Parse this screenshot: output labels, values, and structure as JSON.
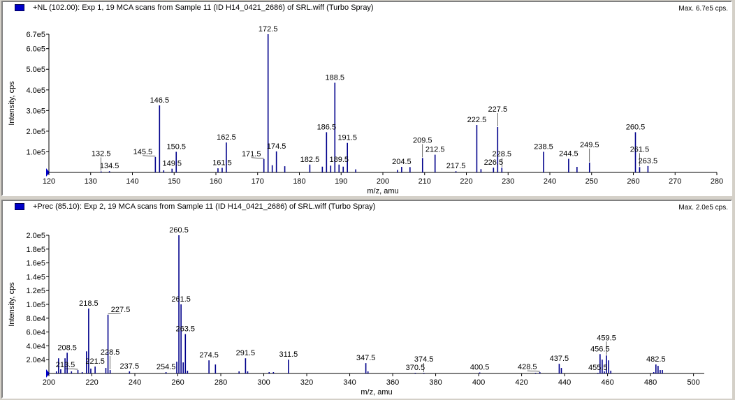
{
  "colors": {
    "peak": "#00008b",
    "background": "#d4d0c8",
    "axis": "#000000",
    "marker": "#0000c8"
  },
  "chart_data": [
    {
      "type": "bar",
      "title": "+NL (102.00): Exp 1, 19 MCA scans from Sample 11 (ID H14_0421_2686) of SRL.wiff (Turbo Spray)",
      "max_label": "Max. 6.7e5 cps.",
      "xlabel": "m/z, amu",
      "ylabel": "Intensity, cps",
      "xlim": [
        120,
        280
      ],
      "ylim": [
        0,
        670000
      ],
      "xticks": [
        "120",
        "130",
        "140",
        "150",
        "160",
        "170",
        "180",
        "190",
        "200",
        "210",
        "220",
        "230",
        "240",
        "250",
        "260",
        "270",
        "280"
      ],
      "yticks": [
        {
          "v": 100000,
          "t": "1.0e5"
        },
        {
          "v": 200000,
          "t": "2.0e5"
        },
        {
          "v": 300000,
          "t": "3.0e5"
        },
        {
          "v": 400000,
          "t": "4.0e5"
        },
        {
          "v": 500000,
          "t": "5.0e5"
        },
        {
          "v": 600000,
          "t": "6.0e5"
        },
        {
          "v": 670000,
          "t": "6.7e5"
        }
      ],
      "peaks": [
        {
          "mz": 132.5,
          "i": 5000,
          "label": "132.5"
        },
        {
          "mz": 134.5,
          "i": 6000,
          "label": "134.5"
        },
        {
          "mz": 145.5,
          "i": 75000,
          "label": "145.5"
        },
        {
          "mz": 146.5,
          "i": 325000,
          "label": "146.5"
        },
        {
          "mz": 147.5,
          "i": 10000
        },
        {
          "mz": 149.5,
          "i": 18000,
          "label": "149.5"
        },
        {
          "mz": 150.5,
          "i": 100000,
          "label": "150.5"
        },
        {
          "mz": 160.5,
          "i": 20000
        },
        {
          "mz": 161.5,
          "i": 22000,
          "label": "161.5"
        },
        {
          "mz": 162.5,
          "i": 145000,
          "label": "162.5"
        },
        {
          "mz": 171.5,
          "i": 65000,
          "label": "171.5"
        },
        {
          "mz": 172.5,
          "i": 670000,
          "label": "172.5"
        },
        {
          "mz": 173.5,
          "i": 35000
        },
        {
          "mz": 174.5,
          "i": 102000,
          "label": "174.5"
        },
        {
          "mz": 176.5,
          "i": 30000
        },
        {
          "mz": 182.5,
          "i": 38000,
          "label": "182.5"
        },
        {
          "mz": 185.5,
          "i": 28000
        },
        {
          "mz": 186.5,
          "i": 195000,
          "label": "186.5"
        },
        {
          "mz": 187.5,
          "i": 33000
        },
        {
          "mz": 188.5,
          "i": 435000,
          "label": "188.5"
        },
        {
          "mz": 189.5,
          "i": 38000,
          "label": "189.5"
        },
        {
          "mz": 190.5,
          "i": 28000
        },
        {
          "mz": 191.5,
          "i": 143000,
          "label": "191.5"
        },
        {
          "mz": 193.5,
          "i": 15000
        },
        {
          "mz": 203.5,
          "i": 12000
        },
        {
          "mz": 204.5,
          "i": 27000,
          "label": "204.5"
        },
        {
          "mz": 206.5,
          "i": 26000
        },
        {
          "mz": 209.5,
          "i": 70000,
          "label": "209.5"
        },
        {
          "mz": 212.5,
          "i": 86000,
          "label": "212.5"
        },
        {
          "mz": 217.5,
          "i": 6000,
          "label": "217.5"
        },
        {
          "mz": 222.5,
          "i": 230000,
          "label": "222.5"
        },
        {
          "mz": 223.5,
          "i": 16000
        },
        {
          "mz": 226.5,
          "i": 23000,
          "label": "226.5"
        },
        {
          "mz": 227.5,
          "i": 220000,
          "label": "227.5"
        },
        {
          "mz": 228.5,
          "i": 23000,
          "label": "228.5"
        },
        {
          "mz": 238.5,
          "i": 100000,
          "label": "238.5"
        },
        {
          "mz": 244.5,
          "i": 66000,
          "label": "244.5"
        },
        {
          "mz": 246.5,
          "i": 27000
        },
        {
          "mz": 249.5,
          "i": 48000,
          "label": "249.5"
        },
        {
          "mz": 260.5,
          "i": 195000,
          "label": "260.5"
        },
        {
          "mz": 261.5,
          "i": 26000,
          "label": "261.5"
        },
        {
          "mz": 263.5,
          "i": 31000,
          "label": "263.5"
        }
      ]
    },
    {
      "type": "bar",
      "title": "+Prec (85.10): Exp 2, 19 MCA scans from Sample 11 (ID H14_0421_2686) of SRL.wiff (Turbo Spray)",
      "max_label": "Max. 2.0e5 cps.",
      "xlabel": "m/z, amu",
      "ylabel": "Intensity, cps",
      "xlim": [
        200,
        505
      ],
      "ylim": [
        0,
        200000
      ],
      "xticks": [
        "200",
        "220",
        "240",
        "260",
        "280",
        "300",
        "320",
        "340",
        "360",
        "380",
        "400",
        "420",
        "440",
        "460",
        "480",
        "500"
      ],
      "yticks": [
        {
          "v": 20000,
          "t": "2.0e4"
        },
        {
          "v": 40000,
          "t": "4.0e4"
        },
        {
          "v": 60000,
          "t": "6.0e4"
        },
        {
          "v": 80000,
          "t": "8.0e4"
        },
        {
          "v": 100000,
          "t": "1.0e5"
        },
        {
          "v": 120000,
          "t": "1.2e5"
        },
        {
          "v": 140000,
          "t": "1.4e5"
        },
        {
          "v": 160000,
          "t": "1.6e5"
        },
        {
          "v": 180000,
          "t": "1.8e5"
        },
        {
          "v": 200000,
          "t": "2.0e5"
        }
      ],
      "peaks": [
        {
          "mz": 203.5,
          "i": 3000
        },
        {
          "mz": 204.5,
          "i": 22000
        },
        {
          "mz": 205.5,
          "i": 6000
        },
        {
          "mz": 207.5,
          "i": 22000
        },
        {
          "mz": 208.5,
          "i": 30000,
          "label": "208.5"
        },
        {
          "mz": 210.5,
          "i": 3000
        },
        {
          "mz": 213.5,
          "i": 5000,
          "label": "213.5"
        },
        {
          "mz": 215.5,
          "i": 2000
        },
        {
          "mz": 217.5,
          "i": 32000
        },
        {
          "mz": 218.5,
          "i": 94000,
          "label": "218.5"
        },
        {
          "mz": 219.5,
          "i": 7000
        },
        {
          "mz": 221.5,
          "i": 10000,
          "label": "221.5"
        },
        {
          "mz": 226.5,
          "i": 8000
        },
        {
          "mz": 227.5,
          "i": 85000,
          "label": "227.5"
        },
        {
          "mz": 228.5,
          "i": 5000,
          "label": "228.5"
        },
        {
          "mz": 237.5,
          "i": 3000,
          "label": "237.5"
        },
        {
          "mz": 254.5,
          "i": 2000,
          "label": "254.5"
        },
        {
          "mz": 259.5,
          "i": 17000
        },
        {
          "mz": 260.5,
          "i": 200000,
          "label": "260.5"
        },
        {
          "mz": 261.5,
          "i": 100000,
          "label": "261.5"
        },
        {
          "mz": 262.5,
          "i": 16000
        },
        {
          "mz": 263.5,
          "i": 57000,
          "label": "263.5"
        },
        {
          "mz": 264.5,
          "i": 4000
        },
        {
          "mz": 274.5,
          "i": 19000,
          "label": "274.5"
        },
        {
          "mz": 277.5,
          "i": 13000
        },
        {
          "mz": 288.5,
          "i": 3000
        },
        {
          "mz": 291.5,
          "i": 22000,
          "label": "291.5"
        },
        {
          "mz": 292.5,
          "i": 3000
        },
        {
          "mz": 302.5,
          "i": 2000
        },
        {
          "mz": 304.5,
          "i": 2000
        },
        {
          "mz": 311.5,
          "i": 20000,
          "label": "311.5"
        },
        {
          "mz": 347.5,
          "i": 15000,
          "label": "347.5"
        },
        {
          "mz": 348.5,
          "i": 3000
        },
        {
          "mz": 370.5,
          "i": 1000,
          "label": "370.5"
        },
        {
          "mz": 374.5,
          "i": 1000,
          "label": "374.5"
        },
        {
          "mz": 400.5,
          "i": 1500,
          "label": "400.5"
        },
        {
          "mz": 426.5,
          "i": 1000
        },
        {
          "mz": 428.5,
          "i": 2000,
          "label": "428.5"
        },
        {
          "mz": 437.5,
          "i": 14000,
          "label": "437.5"
        },
        {
          "mz": 438.5,
          "i": 8000
        },
        {
          "mz": 455.5,
          "i": 1000,
          "label": "455.5"
        },
        {
          "mz": 456.5,
          "i": 28000,
          "label": "456.5"
        },
        {
          "mz": 457.5,
          "i": 20000
        },
        {
          "mz": 458.5,
          "i": 3000
        },
        {
          "mz": 459.5,
          "i": 26000,
          "label": "459.5"
        },
        {
          "mz": 460.5,
          "i": 19000
        },
        {
          "mz": 461.5,
          "i": 4000
        },
        {
          "mz": 481.5,
          "i": 2000
        },
        {
          "mz": 482.5,
          "i": 13000,
          "label": "482.5"
        },
        {
          "mz": 483.5,
          "i": 11000
        },
        {
          "mz": 484.5,
          "i": 5000
        },
        {
          "mz": 485.5,
          "i": 5000
        }
      ]
    }
  ]
}
